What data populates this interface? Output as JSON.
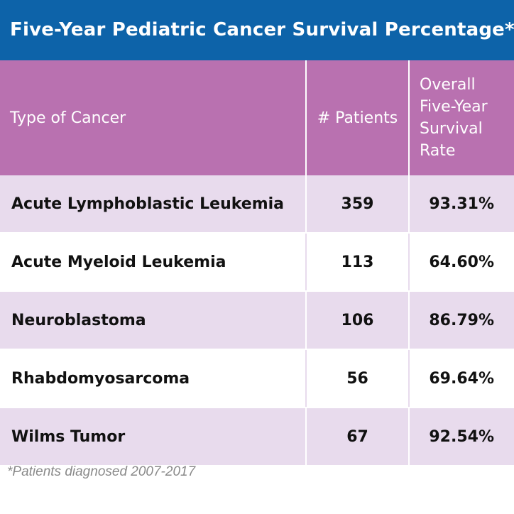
{
  "title": "Five-Year Pediatric Cancer Survival Percentage*",
  "table": {
    "headers": {
      "type": "Type of Cancer",
      "patients": "# Patients",
      "rate_lines": [
        "Overall",
        "Five-Year",
        "Survival",
        "Rate"
      ]
    },
    "rows": [
      {
        "type": "Acute Lymphoblastic Leukemia",
        "patients": "359",
        "rate": "93.31%"
      },
      {
        "type": "Acute Myeloid Leukemia",
        "patients": "113",
        "rate": "64.60%"
      },
      {
        "type": "Neuroblastoma",
        "patients": "106",
        "rate": "86.79%"
      },
      {
        "type": "Rhabdomyosarcoma",
        "patients": "56",
        "rate": "69.64%"
      },
      {
        "type": "Wilms Tumor",
        "patients": "67",
        "rate": "92.54%"
      }
    ]
  },
  "footnote": "*Patients diagnosed 2007-2017",
  "colors": {
    "title_bg": "#0d63a9",
    "header_bg": "#b971b0",
    "row_shade": "#e8dbed"
  }
}
